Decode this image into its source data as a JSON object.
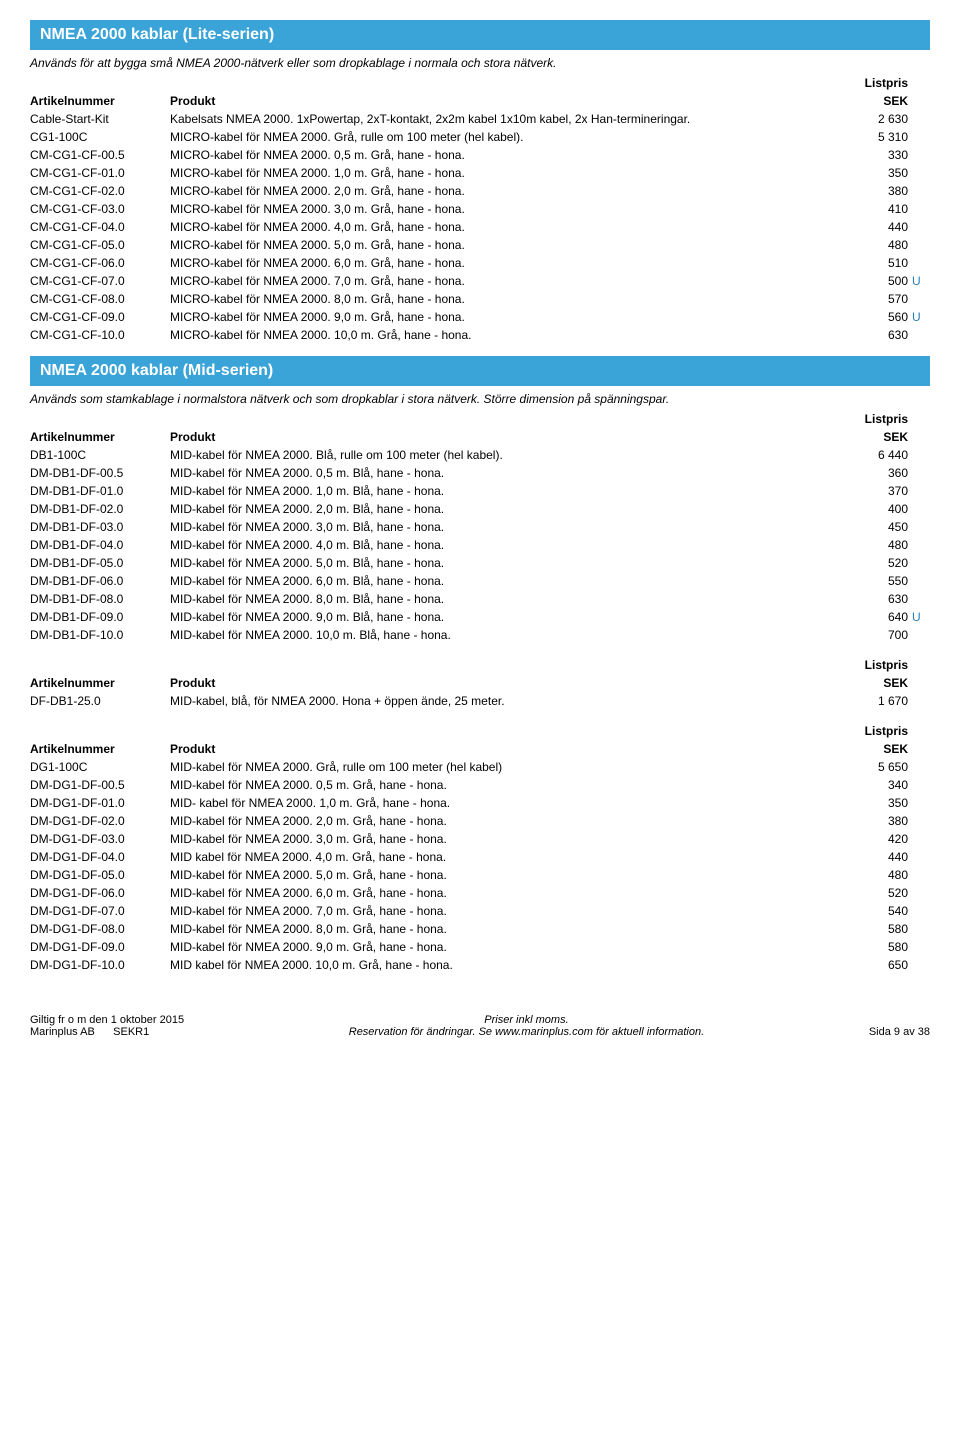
{
  "section1": {
    "title": "NMEA 2000 kablar (Lite-serien)",
    "intro": "Används för att bygga små NMEA 2000-nätverk eller som dropkablage i normala och stora nätverk.",
    "header_art": "Artikelnummer",
    "header_prod": "Produkt",
    "header_listpris": "Listpris",
    "header_sek": "SEK",
    "rows": [
      {
        "art": "Cable-Start-Kit",
        "prod": "Kabelsats NMEA 2000. 1xPowertap, 2xT-kontakt, 2x2m kabel 1x10m kabel, 2x Han-termineringar.",
        "price": "2 630",
        "flag": ""
      },
      {
        "art": "CG1-100C",
        "prod": "MICRO-kabel för NMEA 2000. Grå, rulle om 100 meter (hel kabel).",
        "price": "5 310",
        "flag": ""
      },
      {
        "art": "CM-CG1-CF-00.5",
        "prod": "MICRO-kabel för NMEA 2000. 0,5 m. Grå, hane - hona.",
        "price": "330",
        "flag": ""
      },
      {
        "art": "CM-CG1-CF-01.0",
        "prod": "MICRO-kabel för NMEA 2000. 1,0 m. Grå, hane - hona.",
        "price": "350",
        "flag": ""
      },
      {
        "art": "CM-CG1-CF-02.0",
        "prod": "MICRO-kabel för NMEA 2000. 2,0 m. Grå, hane - hona.",
        "price": "380",
        "flag": ""
      },
      {
        "art": "CM-CG1-CF-03.0",
        "prod": "MICRO-kabel för NMEA 2000. 3,0 m. Grå, hane - hona.",
        "price": "410",
        "flag": ""
      },
      {
        "art": "CM-CG1-CF-04.0",
        "prod": "MICRO-kabel för NMEA 2000. 4,0 m. Grå, hane - hona.",
        "price": "440",
        "flag": ""
      },
      {
        "art": "CM-CG1-CF-05.0",
        "prod": "MICRO-kabel för NMEA 2000. 5,0 m. Grå, hane - hona.",
        "price": "480",
        "flag": ""
      },
      {
        "art": "CM-CG1-CF-06.0",
        "prod": "MICRO-kabel för NMEA 2000. 6,0 m. Grå, hane - hona.",
        "price": "510",
        "flag": ""
      },
      {
        "art": "CM-CG1-CF-07.0",
        "prod": "MICRO-kabel för NMEA 2000. 7,0 m. Grå, hane - hona.",
        "price": "500",
        "flag": "U"
      },
      {
        "art": "CM-CG1-CF-08.0",
        "prod": "MICRO-kabel för NMEA 2000. 8,0 m. Grå, hane - hona.",
        "price": "570",
        "flag": ""
      },
      {
        "art": "CM-CG1-CF-09.0",
        "prod": "MICRO-kabel för NMEA 2000. 9,0 m. Grå, hane - hona.",
        "price": "560",
        "flag": "U"
      },
      {
        "art": "CM-CG1-CF-10.0",
        "prod": "MICRO-kabel för NMEA 2000. 10,0 m. Grå, hane - hona.",
        "price": "630",
        "flag": ""
      }
    ]
  },
  "section2": {
    "title": "NMEA 2000 kablar (Mid-serien)",
    "intro": "Används som stamkablage i normalstora nätverk och som dropkablar i stora nätverk. Större dimension på spänningspar.",
    "header_art": "Artikelnummer",
    "header_prod": "Produkt",
    "header_listpris": "Listpris",
    "header_sek": "SEK",
    "group1": [
      {
        "art": "DB1-100C",
        "prod": "MID-kabel för NMEA 2000. Blå, rulle om 100 meter (hel kabel).",
        "price": "6 440",
        "flag": ""
      },
      {
        "art": "DM-DB1-DF-00.5",
        "prod": "MID-kabel för NMEA 2000. 0,5 m. Blå, hane - hona.",
        "price": "360",
        "flag": ""
      },
      {
        "art": "DM-DB1-DF-01.0",
        "prod": "MID-kabel för NMEA 2000. 1,0 m. Blå, hane - hona.",
        "price": "370",
        "flag": ""
      },
      {
        "art": "DM-DB1-DF-02.0",
        "prod": "MID-kabel för NMEA 2000. 2,0 m. Blå, hane - hona.",
        "price": "400",
        "flag": ""
      },
      {
        "art": "DM-DB1-DF-03.0",
        "prod": "MID-kabel för NMEA 2000. 3,0 m. Blå, hane - hona.",
        "price": "450",
        "flag": ""
      },
      {
        "art": "DM-DB1-DF-04.0",
        "prod": "MID-kabel för NMEA 2000. 4,0 m. Blå, hane - hona.",
        "price": "480",
        "flag": ""
      },
      {
        "art": "DM-DB1-DF-05.0",
        "prod": "MID-kabel för NMEA 2000. 5,0 m. Blå, hane - hona.",
        "price": "520",
        "flag": ""
      },
      {
        "art": "DM-DB1-DF-06.0",
        "prod": "MID-kabel för NMEA 2000. 6,0 m. Blå, hane - hona.",
        "price": "550",
        "flag": ""
      },
      {
        "art": "DM-DB1-DF-08.0",
        "prod": "MID-kabel för NMEA 2000. 8,0 m. Blå, hane - hona.",
        "price": "630",
        "flag": ""
      },
      {
        "art": "DM-DB1-DF-09.0",
        "prod": "MID-kabel för NMEA 2000. 9,0 m. Blå, hane - hona.",
        "price": "640",
        "flag": "U"
      },
      {
        "art": "DM-DB1-DF-10.0",
        "prod": "MID-kabel för NMEA 2000. 10,0 m. Blå, hane - hona.",
        "price": "700",
        "flag": ""
      }
    ],
    "group2": [
      {
        "art": "DF-DB1-25.0",
        "prod": "MID-kabel, blå, för NMEA 2000. Hona + öppen ände, 25 meter.",
        "price": "1 670",
        "flag": ""
      }
    ],
    "group3": [
      {
        "art": "DG1-100C",
        "prod": "MID-kabel för NMEA 2000. Grå, rulle om 100 meter (hel kabel)",
        "price": "5 650",
        "flag": ""
      },
      {
        "art": "DM-DG1-DF-00.5",
        "prod": "MID-kabel för NMEA 2000. 0,5 m. Grå, hane - hona.",
        "price": "340",
        "flag": ""
      },
      {
        "art": "DM-DG1-DF-01.0",
        "prod": "MID- kabel för NMEA 2000. 1,0 m. Grå, hane - hona.",
        "price": "350",
        "flag": ""
      },
      {
        "art": "DM-DG1-DF-02.0",
        "prod": "MID-kabel för NMEA 2000. 2,0 m. Grå, hane - hona.",
        "price": "380",
        "flag": ""
      },
      {
        "art": "DM-DG1-DF-03.0",
        "prod": "MID-kabel för NMEA 2000. 3,0 m. Grå, hane - hona.",
        "price": "420",
        "flag": ""
      },
      {
        "art": "DM-DG1-DF-04.0",
        "prod": "MID kabel för NMEA 2000. 4,0 m. Grå, hane - hona.",
        "price": "440",
        "flag": ""
      },
      {
        "art": "DM-DG1-DF-05.0",
        "prod": "MID-kabel för NMEA 2000. 5,0 m. Grå, hane - hona.",
        "price": "480",
        "flag": ""
      },
      {
        "art": "DM-DG1-DF-06.0",
        "prod": "MID-kabel för NMEA 2000. 6,0 m. Grå, hane - hona.",
        "price": "520",
        "flag": ""
      },
      {
        "art": "DM-DG1-DF-07.0",
        "prod": "MID-kabel för NMEA 2000. 7,0 m. Grå, hane - hona.",
        "price": "540",
        "flag": ""
      },
      {
        "art": "DM-DG1-DF-08.0",
        "prod": "MID-kabel för NMEA 2000. 8,0 m. Grå, hane - hona.",
        "price": "580",
        "flag": ""
      },
      {
        "art": "DM-DG1-DF-09.0",
        "prod": "MID-kabel för NMEA 2000. 9,0 m. Grå, hane - hona.",
        "price": "580",
        "flag": ""
      },
      {
        "art": "DM-DG1-DF-10.0",
        "prod": "MID kabel för NMEA 2000. 10,0 m. Grå, hane - hona.",
        "price": "650",
        "flag": ""
      }
    ]
  },
  "footer": {
    "left1": "Giltig fr o m den 1 oktober 2015",
    "left2a": "Marinplus AB",
    "left2b": "SEKR1",
    "center1": "Priser inkl moms.",
    "center2": "Reservation för ändringar. Se www.marinplus.com för aktuell information.",
    "right": "Sida 9 av 38"
  }
}
